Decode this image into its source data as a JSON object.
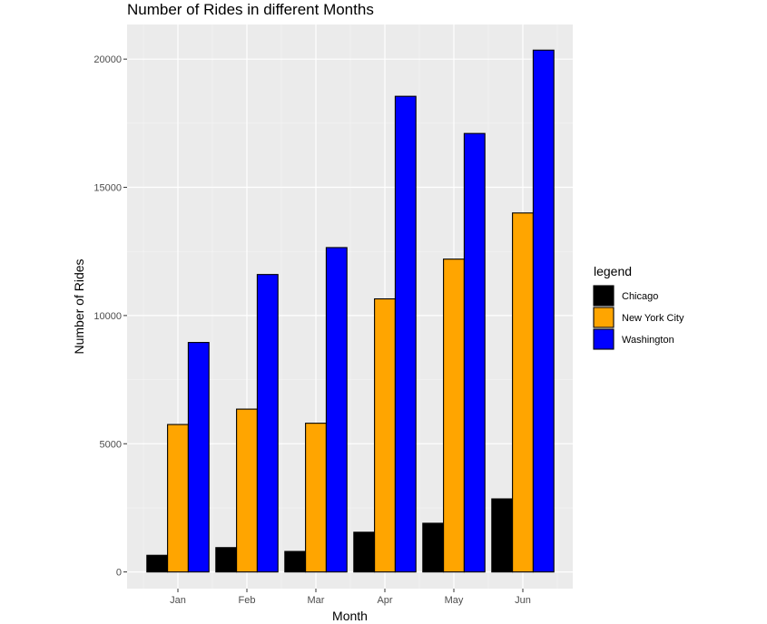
{
  "chart_data": {
    "type": "bar",
    "title": "Number of Rides in different Months",
    "xlabel": "Month",
    "ylabel": "Number of Rides",
    "categories": [
      "Jan",
      "Feb",
      "Mar",
      "Apr",
      "May",
      "Jun"
    ],
    "ylim": [
      -650,
      21350
    ],
    "yticks": [
      0,
      5000,
      10000,
      15000,
      20000
    ],
    "ytick_labels": [
      "0",
      "5000",
      "10000",
      "15000",
      "20000"
    ],
    "grid": true,
    "legend": {
      "title": "legend",
      "position": "right"
    },
    "series": [
      {
        "name": "Chicago",
        "color": "#000000",
        "values": [
          650,
          950,
          800,
          1550,
          1900,
          2850
        ]
      },
      {
        "name": "New York City",
        "color": "#FFA500",
        "values": [
          5750,
          6350,
          5800,
          10650,
          12200,
          14000
        ]
      },
      {
        "name": "Washington",
        "color": "#0000FF",
        "values": [
          8950,
          11600,
          12650,
          18550,
          17100,
          20350
        ]
      }
    ]
  }
}
